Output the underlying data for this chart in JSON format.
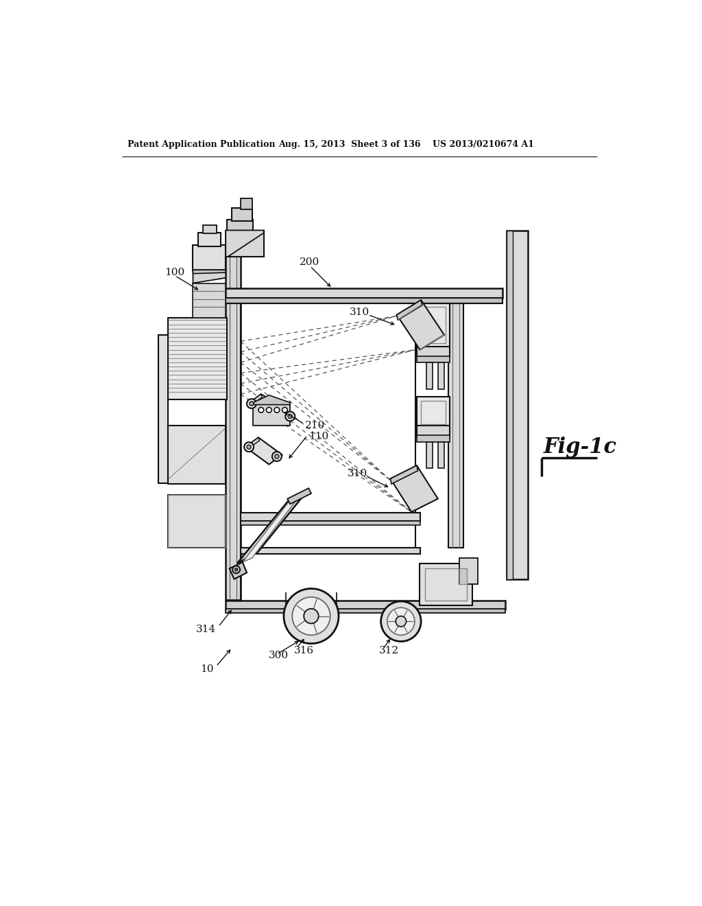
{
  "bg_color": "#ffffff",
  "line_color": "#111111",
  "header_left": "Patent Application Publication",
  "header_mid": "Aug. 15, 2013  Sheet 3 of 136",
  "header_right": "US 2013/0210674 A1",
  "fig_label": "Fig-1c",
  "lc": "#111111",
  "gray1": "#c8c8c8",
  "gray2": "#e0e0e0",
  "gray3": "#d4d4d4"
}
